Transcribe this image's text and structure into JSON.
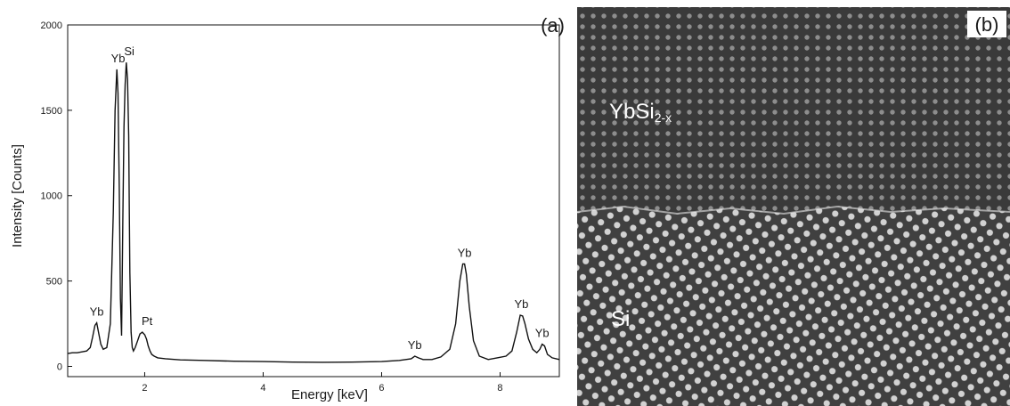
{
  "chart_data": {
    "type": "line",
    "panel_label": "(a)",
    "xlabel": "Energy [keV]",
    "ylabel": "Intensity [Counts]",
    "xlim": [
      0.7,
      9.0
    ],
    "ylim": [
      -60,
      2000
    ],
    "xticks": [
      2,
      4,
      6,
      8
    ],
    "yticks": [
      0,
      500,
      1000,
      1500,
      2000
    ],
    "grid": false,
    "series": [
      {
        "x": [
          0.7,
          0.78,
          0.86,
          0.94,
          1.02,
          1.08,
          1.12,
          1.16,
          1.19,
          1.22,
          1.26,
          1.3,
          1.36,
          1.42,
          1.47,
          1.5,
          1.53,
          1.55,
          1.57,
          1.59,
          1.61,
          1.63,
          1.65,
          1.67,
          1.69,
          1.71,
          1.73,
          1.74,
          1.75,
          1.77,
          1.79,
          1.81,
          1.84,
          1.88,
          1.92,
          1.96,
          2.0,
          2.03,
          2.06,
          2.09,
          2.12,
          2.16,
          2.22,
          2.35,
          2.6,
          3.0,
          3.5,
          4.0,
          4.5,
          5.0,
          5.5,
          6.0,
          6.3,
          6.5,
          6.56,
          6.62,
          6.7,
          6.85,
          7.0,
          7.15,
          7.25,
          7.32,
          7.37,
          7.4,
          7.43,
          7.48,
          7.55,
          7.65,
          7.8,
          7.95,
          8.1,
          8.2,
          8.28,
          8.34,
          8.38,
          8.42,
          8.48,
          8.55,
          8.62,
          8.67,
          8.71,
          8.75,
          8.8,
          8.88,
          9.0
        ],
        "values": [
          75,
          80,
          80,
          85,
          90,
          110,
          170,
          240,
          255,
          200,
          130,
          100,
          110,
          250,
          900,
          1500,
          1740,
          1600,
          1050,
          400,
          180,
          850,
          1400,
          1650,
          1780,
          1680,
          1350,
          900,
          550,
          200,
          110,
          90,
          110,
          150,
          190,
          200,
          185,
          160,
          120,
          90,
          70,
          60,
          50,
          45,
          38,
          35,
          30,
          28,
          25,
          24,
          25,
          28,
          35,
          45,
          60,
          50,
          40,
          40,
          55,
          100,
          250,
          500,
          600,
          600,
          540,
          350,
          150,
          60,
          40,
          50,
          60,
          90,
          200,
          300,
          295,
          250,
          160,
          100,
          80,
          100,
          130,
          120,
          70,
          50,
          40
        ]
      }
    ],
    "annotations": [
      {
        "text": "Yb",
        "x": 1.19,
        "y": 255
      },
      {
        "text": "Yb",
        "x": 1.55,
        "y": 1740
      },
      {
        "text": "Si",
        "x": 1.74,
        "y": 1780
      },
      {
        "text": "Pt",
        "x": 2.04,
        "y": 200
      },
      {
        "text": "Yb",
        "x": 6.56,
        "y": 60
      },
      {
        "text": "Yb",
        "x": 7.4,
        "y": 600
      },
      {
        "text": "Yb",
        "x": 8.36,
        "y": 300
      },
      {
        "text": "Yb",
        "x": 8.71,
        "y": 130
      }
    ]
  },
  "image_panel": {
    "panel_label": "(b)",
    "upper_label_main": "YbSi",
    "upper_label_sub": "2-x",
    "lower_label": "Si"
  }
}
